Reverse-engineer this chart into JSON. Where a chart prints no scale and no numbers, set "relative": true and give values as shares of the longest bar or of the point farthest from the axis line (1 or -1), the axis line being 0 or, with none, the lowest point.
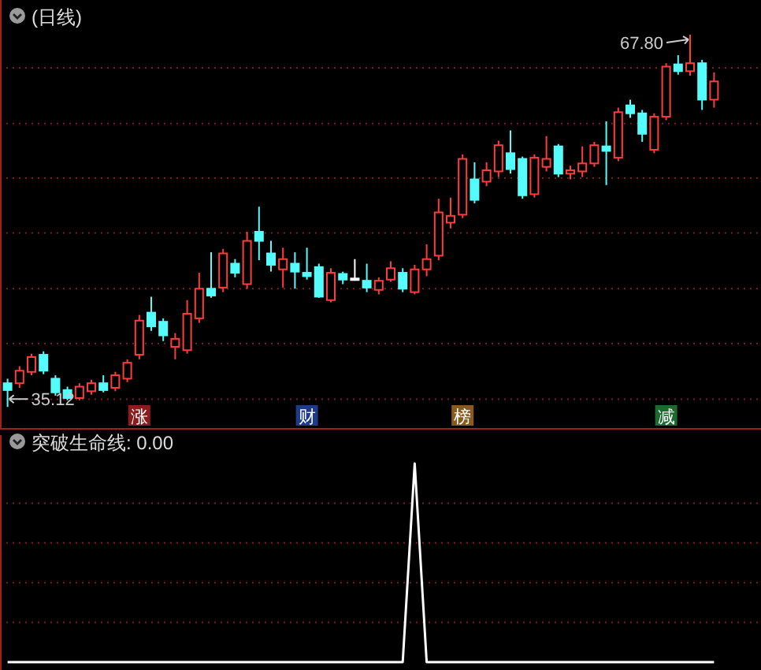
{
  "chart_data": [
    {
      "type": "candlestick",
      "title": "(日线)",
      "categories": [
        null,
        null,
        null,
        null,
        null,
        null,
        null,
        null,
        null,
        null,
        null,
        null,
        null,
        null,
        null,
        null,
        null,
        null,
        null,
        null,
        null,
        null,
        null,
        null,
        null,
        null,
        null,
        null,
        null,
        null,
        null,
        null,
        null,
        null,
        null,
        null,
        null,
        null,
        null,
        null,
        null,
        null,
        null,
        null,
        null,
        null,
        null,
        null,
        null,
        null,
        null,
        null,
        null,
        null,
        null,
        null,
        null,
        null,
        null,
        null
      ],
      "ohlc": [
        [
          37.2,
          37.6,
          35.12,
          36.6
        ],
        [
          37.2,
          38.7,
          36.8,
          38.3
        ],
        [
          38.2,
          39.8,
          37.9,
          39.5
        ],
        [
          39.7,
          40.0,
          38.0,
          38.3
        ],
        [
          37.6,
          37.9,
          36.1,
          36.4
        ],
        [
          36.6,
          36.9,
          35.7,
          35.9
        ],
        [
          35.9,
          37.2,
          35.7,
          36.9
        ],
        [
          36.5,
          37.5,
          36.2,
          37.2
        ],
        [
          37.2,
          37.9,
          36.4,
          36.6
        ],
        [
          36.8,
          38.2,
          36.5,
          37.9
        ],
        [
          37.6,
          39.3,
          37.3,
          39.0
        ],
        [
          39.7,
          43.2,
          39.3,
          42.7
        ],
        [
          43.4,
          44.8,
          41.8,
          42.2
        ],
        [
          42.6,
          42.9,
          40.9,
          41.4
        ],
        [
          40.4,
          41.6,
          39.3,
          41.1
        ],
        [
          40.1,
          44.5,
          39.8,
          43.3
        ],
        [
          42.9,
          46.9,
          42.5,
          45.5
        ],
        [
          45.5,
          48.7,
          44.7,
          44.9
        ],
        [
          45.6,
          49.0,
          45.2,
          48.6
        ],
        [
          47.7,
          48.1,
          46.5,
          46.9
        ],
        [
          45.9,
          50.5,
          45.5,
          49.7
        ],
        [
          50.5,
          52.7,
          48.0,
          49.7
        ],
        [
          48.6,
          49.7,
          47.0,
          47.6
        ],
        [
          47.2,
          49.1,
          45.6,
          48.1
        ],
        [
          47.7,
          48.7,
          45.5,
          47.0
        ],
        [
          46.9,
          49.1,
          46.3,
          46.6
        ],
        [
          47.4,
          47.7,
          44.7,
          44.8
        ],
        [
          44.5,
          47.3,
          44.3,
          46.9
        ],
        [
          46.8,
          47.0,
          45.9,
          46.3
        ],
        [
          46.4,
          48.1,
          46.2,
          46.4
        ],
        [
          46.2,
          47.7,
          45.2,
          45.6
        ],
        [
          45.4,
          46.5,
          45.0,
          46.2
        ],
        [
          46.3,
          47.9,
          46.1,
          47.3
        ],
        [
          46.9,
          47.3,
          45.2,
          45.5
        ],
        [
          45.2,
          47.6,
          45.0,
          47.2
        ],
        [
          47.2,
          49.4,
          46.6,
          48.1
        ],
        [
          48.4,
          53.4,
          48.0,
          52.2
        ],
        [
          51.3,
          53.5,
          50.8,
          51.9
        ],
        [
          52.0,
          57.3,
          51.7,
          56.9
        ],
        [
          55.1,
          56.6,
          53.0,
          53.3
        ],
        [
          54.9,
          56.6,
          54.5,
          55.9
        ],
        [
          55.8,
          58.5,
          55.3,
          58.1
        ],
        [
          57.4,
          59.4,
          55.6,
          56.0
        ],
        [
          56.9,
          57.1,
          53.4,
          53.7
        ],
        [
          53.8,
          57.3,
          53.5,
          57.0
        ],
        [
          56.2,
          58.9,
          55.8,
          56.9
        ],
        [
          58.0,
          58.2,
          55.3,
          55.6
        ],
        [
          55.6,
          56.3,
          55.1,
          55.9
        ],
        [
          55.8,
          58.0,
          55.3,
          56.5
        ],
        [
          56.5,
          58.4,
          56.2,
          58.1
        ],
        [
          58.0,
          60.2,
          54.6,
          57.6
        ],
        [
          57.0,
          61.4,
          56.7,
          61.0
        ],
        [
          61.6,
          62.1,
          60.5,
          60.9
        ],
        [
          60.9,
          61.2,
          58.4,
          59.1
        ],
        [
          57.7,
          60.9,
          57.4,
          60.6
        ],
        [
          60.6,
          65.3,
          60.3,
          65.0
        ],
        [
          65.2,
          66.0,
          64.3,
          64.6
        ],
        [
          64.6,
          67.8,
          64.2,
          65.3
        ],
        [
          65.3,
          65.6,
          61.2,
          62.1
        ],
        [
          62.1,
          64.5,
          61.4,
          63.7
        ]
      ],
      "colors": [
        "#54fcfc",
        "#ff3c3c",
        "#ff3c3c",
        "#54fcfc",
        "#54fcfc",
        "#54fcfc",
        "#ff3c3c",
        "#ff3c3c",
        "#54fcfc",
        "#ff3c3c",
        "#ff3c3c",
        "#ff3c3c",
        "#54fcfc",
        "#54fcfc",
        "#ff3c3c",
        "#ff3c3c",
        "#ff3c3c",
        "#54fcfc",
        "#ff3c3c",
        "#54fcfc",
        "#ff3c3c",
        "#54fcfc",
        "#54fcfc",
        "#ff3c3c",
        "#54fcfc",
        "#54fcfc",
        "#54fcfc",
        "#ff3c3c",
        "#54fcfc",
        "#ffffff",
        "#54fcfc",
        "#ff3c3c",
        "#ff3c3c",
        "#54fcfc",
        "#ff3c3c",
        "#ff3c3c",
        "#ff3c3c",
        "#ff3c3c",
        "#ff3c3c",
        "#54fcfc",
        "#ff3c3c",
        "#ff3c3c",
        "#54fcfc",
        "#54fcfc",
        "#ff3c3c",
        "#ff3c3c",
        "#54fcfc",
        "#ff3c3c",
        "#ff3c3c",
        "#ff3c3c",
        "#54fcfc",
        "#ff3c3c",
        "#54fcfc",
        "#54fcfc",
        "#ff3c3c",
        "#ff3c3c",
        "#54fcfc",
        "#ff3c3c",
        "#54fcfc",
        "#ff3c3c"
      ],
      "ylim": [
        33.2,
        70.85
      ],
      "yticks": [
        {
          "value": 35.8,
          "label": null
        },
        {
          "value": 40.7,
          "label": null
        },
        {
          "value": 45.5,
          "label": null
        },
        {
          "value": 50.4,
          "label": null
        },
        {
          "value": 55.2,
          "label": null
        },
        {
          "value": 60.0,
          "label": null
        },
        {
          "value": 64.9,
          "label": null
        }
      ],
      "grid": "y",
      "annotations": [
        "35.12",
        "67.80",
        "涨",
        "财",
        "榜",
        "减"
      ]
    },
    {
      "type": "line",
      "title": "突破生命线: 0.00",
      "relative": true,
      "ref_lines": [
        {
          "axis": "y",
          "value": 0.2,
          "color": "#7a1f1f",
          "line_style": "dotted"
        },
        {
          "axis": "y",
          "value": 0.4,
          "color": "#7a1f1f",
          "line_style": "dotted"
        },
        {
          "axis": "y",
          "value": 0.6,
          "color": "#7a1f1f",
          "line_style": "dotted"
        },
        {
          "axis": "y",
          "value": 0.8,
          "color": "#7a1f1f",
          "line_style": "dotted"
        }
      ],
      "categories": [
        null,
        null,
        null,
        null,
        null,
        null,
        null,
        null,
        null,
        null,
        null,
        null,
        null,
        null,
        null,
        null,
        null,
        null,
        null,
        null,
        null,
        null,
        null,
        null,
        null,
        null,
        null,
        null,
        null,
        null,
        null,
        null,
        null,
        null,
        null,
        null,
        null,
        null,
        null,
        null,
        null,
        null,
        null,
        null,
        null,
        null,
        null,
        null,
        null,
        null,
        null,
        null,
        null,
        null,
        null,
        null,
        null,
        null,
        null,
        null
      ],
      "series": [
        {
          "color": "#ffffff",
          "values": [
            0,
            0,
            0,
            0,
            0,
            0,
            0,
            0,
            0,
            0,
            0,
            0,
            0,
            0,
            0,
            0,
            0,
            0,
            0,
            0,
            0,
            0,
            0,
            0,
            0,
            0,
            0,
            0,
            0,
            0,
            0,
            0,
            0,
            0,
            1,
            0,
            0,
            0,
            0,
            0,
            0,
            0,
            0,
            0,
            0,
            0,
            0,
            0,
            0,
            0,
            0,
            0,
            0,
            0,
            0,
            0,
            0,
            0,
            0,
            0
          ]
        }
      ]
    }
  ]
}
